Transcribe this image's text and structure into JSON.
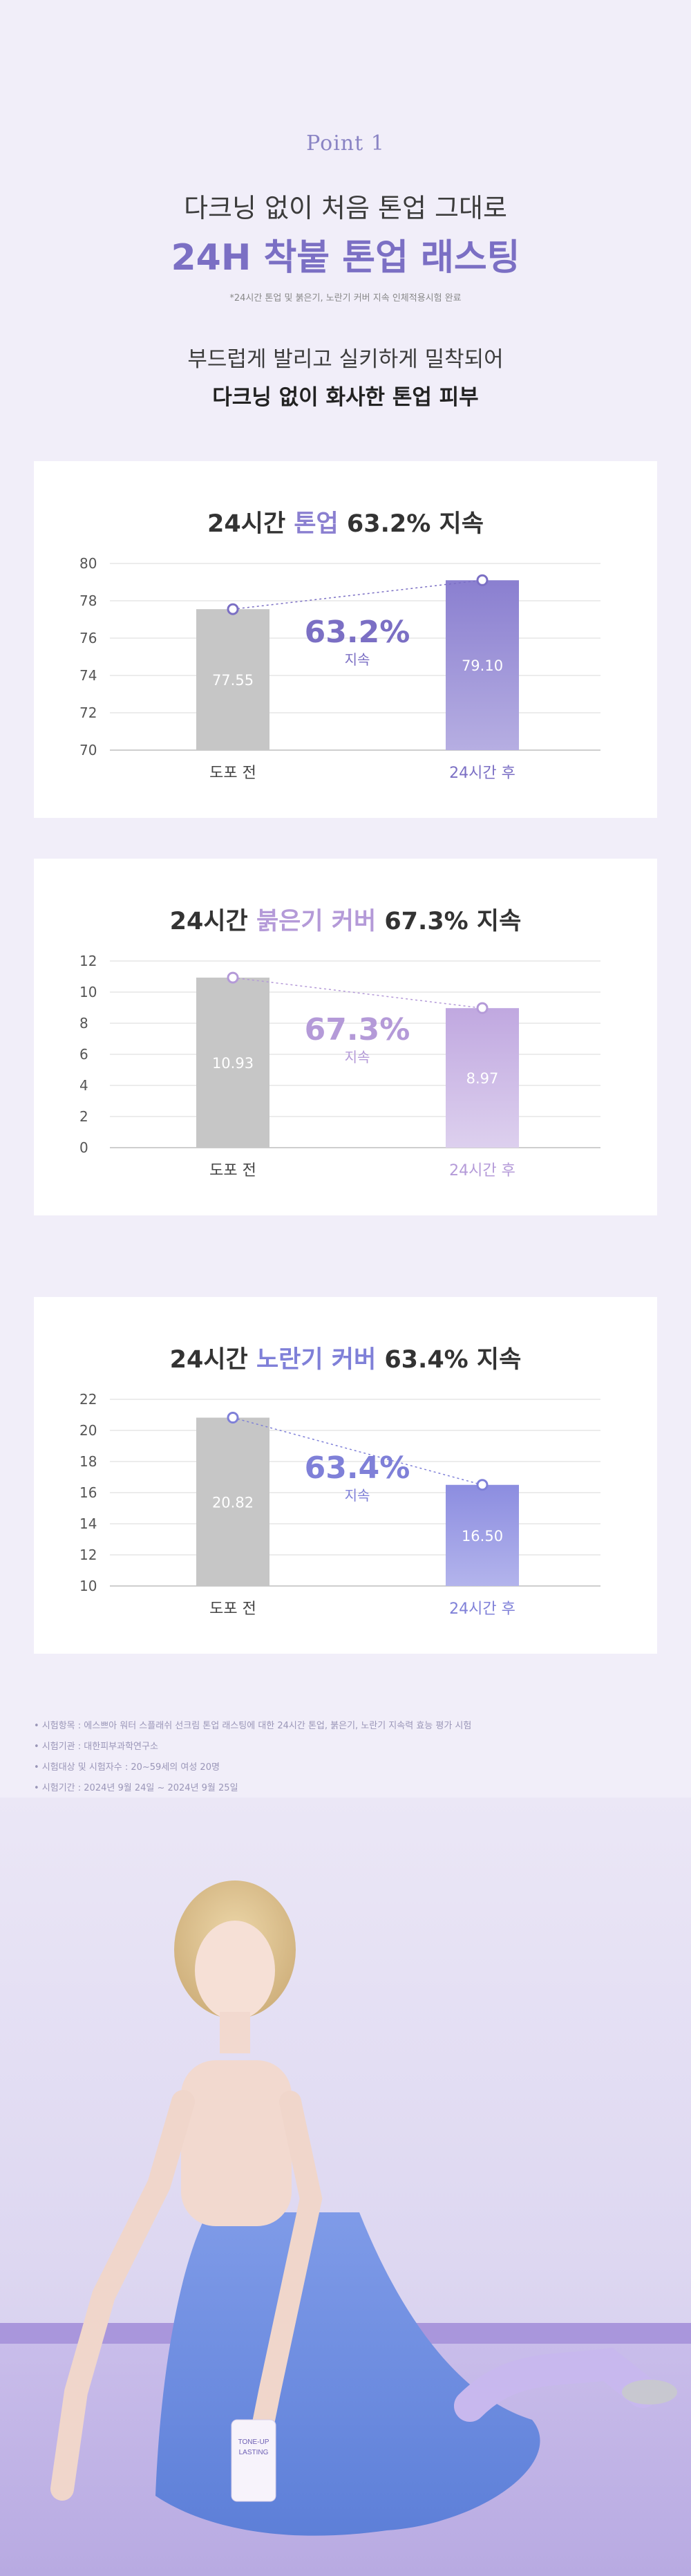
{
  "header": {
    "point_label": "Point 1",
    "intro": "다크닝 없이 처음 톤업 그대로",
    "headline": "24H 착붙 톤업 래스팅",
    "footnote": "*24시간 톤업 및 붉은기, 노란기 커버 지속 인체적용시험 완료",
    "desc_line1": "부드럽게 발리고 실키하게 밀착되어",
    "desc_line2": "다크닝 없이 화사한 톤업 피부"
  },
  "colors": {
    "accent": "#7b6fc4",
    "before_bar": "#c6c6c6",
    "grid": "#e6e6e6"
  },
  "chart_data": [
    {
      "type": "bar",
      "title_prefix": "24시간 ",
      "title_highlight": "톤업",
      "title_suffix": " 63.2% 지속",
      "highlight_color": "#8a7fd0",
      "categories": [
        "도포 전",
        "24시간 후"
      ],
      "values": [
        77.55,
        79.1
      ],
      "value_labels": [
        "77.55",
        "79.10"
      ],
      "ylim": [
        70,
        80
      ],
      "yticks": [
        "70",
        "72",
        "74",
        "76",
        "78",
        "80"
      ],
      "center_value": "63.2%",
      "center_sub": "지속",
      "after_color_top": "#8a7fd0",
      "after_color_bottom": "#b6aee2",
      "after_label_color": "#7b6fc4",
      "center_color": "#7b6fc4",
      "grid": true
    },
    {
      "type": "bar",
      "title_prefix": "24시간 ",
      "title_highlight": "붉은기 커버",
      "title_suffix": " 67.3% 지속",
      "highlight_color": "#b49ad8",
      "categories": [
        "도포 전",
        "24시간 후"
      ],
      "values": [
        10.93,
        8.97
      ],
      "value_labels": [
        "10.93",
        "8.97"
      ],
      "ylim": [
        0,
        12
      ],
      "yticks": [
        "0",
        "2",
        "4",
        "6",
        "8",
        "10",
        "12"
      ],
      "center_value": "67.3%",
      "center_sub": "지속",
      "after_color_top": "#c0a8e0",
      "after_color_bottom": "#ddd0ee",
      "after_label_color": "#b49ad8",
      "center_color": "#b49ad8",
      "grid": true
    },
    {
      "type": "bar",
      "title_prefix": "24시간 ",
      "title_highlight": "노란기 커버",
      "title_suffix": " 63.4% 지속",
      "highlight_color": "#7f80d8",
      "categories": [
        "도포 전",
        "24시간 후"
      ],
      "values": [
        20.82,
        16.5
      ],
      "value_labels": [
        "20.82",
        "16.50"
      ],
      "ylim": [
        10,
        22
      ],
      "yticks": [
        "10",
        "12",
        "14",
        "16",
        "18",
        "20",
        "22"
      ],
      "center_value": "63.4%",
      "center_sub": "지속",
      "after_color_top": "#8c8de0",
      "after_color_bottom": "#b3b4ec",
      "after_label_color": "#7f80d8",
      "center_color": "#7f80d8",
      "grid": true
    }
  ],
  "notes": [
    "• 시험항목 : 에스쁘아 워터 스플래쉬 선크림 톤업 래스팅에 대한 24시간 톤업, 붉은기, 노란기 지속력 효능 평가 시험",
    "• 시험기관 : 대한피부과학연구소",
    "• 시험대상 및 시험자수 : 20~59세의 여성 20명",
    "• 시험기간 : 2024년 9월 24일 ~ 2024년 9월 25일"
  ],
  "product": {
    "tube_text_1": "TONE-UP",
    "tube_text_2": "LASTING"
  }
}
